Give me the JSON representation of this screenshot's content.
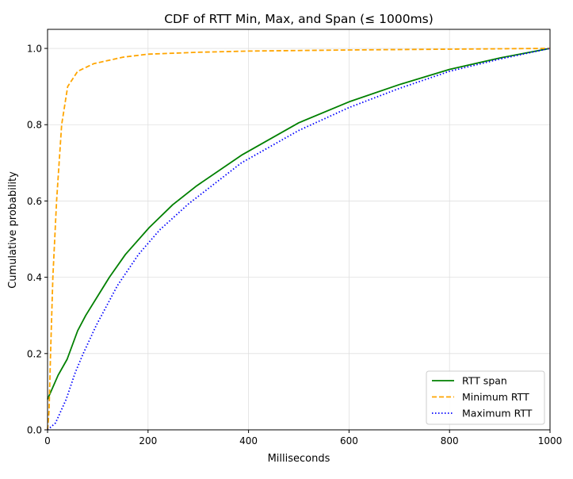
{
  "chart_data": {
    "type": "line",
    "title": "CDF of RTT Min, Max, and Span (≤ 1000ms)",
    "xlabel": "Milliseconds",
    "ylabel": "Cumulative probability",
    "xlim": [
      0,
      1000
    ],
    "ylim": [
      0,
      1.05
    ],
    "xticks": [
      0,
      200,
      400,
      600,
      800,
      1000
    ],
    "yticks": [
      0.0,
      0.2,
      0.4,
      0.6,
      0.8,
      1.0
    ],
    "xtick_labels": [
      "0",
      "200",
      "400",
      "600",
      "800",
      "1000"
    ],
    "ytick_labels": [
      "0.0",
      "0.2",
      "0.4",
      "0.6",
      "0.8",
      "1.0"
    ],
    "grid": true,
    "legend_position": "lower-right",
    "series": [
      {
        "name": "RTT span",
        "color": "#008000",
        "style": "solid",
        "x": [
          0,
          21,
          39,
          60,
          76,
          123,
          155,
          202,
          249,
          297,
          386,
          500,
          600,
          700,
          800,
          900,
          1000
        ],
        "y": [
          0.08,
          0.143,
          0.185,
          0.26,
          0.3,
          0.4,
          0.46,
          0.53,
          0.59,
          0.64,
          0.72,
          0.805,
          0.86,
          0.905,
          0.945,
          0.975,
          1.0
        ]
      },
      {
        "name": "Minimum RTT",
        "color": "#FFA500",
        "style": "dashed",
        "x": [
          0,
          3,
          6,
          10.5,
          18,
          28,
          40,
          60,
          92,
          150,
          200,
          300,
          400,
          600,
          800,
          1000
        ],
        "y": [
          0.0,
          0.05,
          0.2,
          0.4,
          0.6,
          0.8,
          0.9,
          0.94,
          0.96,
          0.977,
          0.985,
          0.99,
          0.993,
          0.996,
          0.998,
          1.0
        ]
      },
      {
        "name": "Maximum RTT",
        "color": "#0000FF",
        "style": "dotted",
        "x": [
          0,
          16,
          37,
          55,
          71,
          97,
          139,
          181,
          223,
          281,
          386,
          500,
          600,
          700,
          800,
          900,
          1000
        ],
        "y": [
          0.0,
          0.018,
          0.08,
          0.15,
          0.2,
          0.274,
          0.378,
          0.46,
          0.524,
          0.593,
          0.7,
          0.785,
          0.845,
          0.895,
          0.94,
          0.972,
          1.0
        ]
      }
    ]
  }
}
